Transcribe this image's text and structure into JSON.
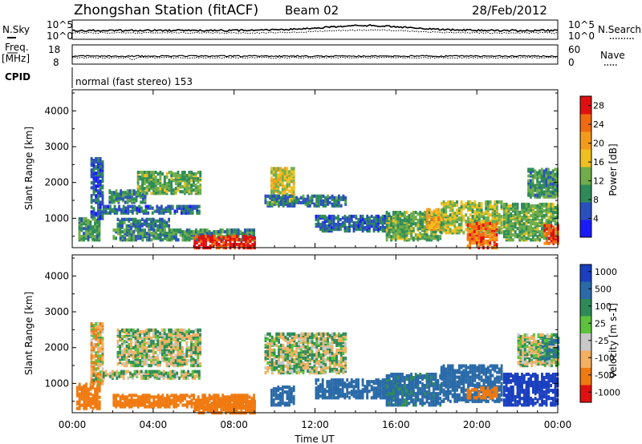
{
  "header": {
    "station": "Zhongshan Station (fitACF)",
    "beam": "Beam 02",
    "date": "28/Feb/2012"
  },
  "strips": {
    "noise": {
      "left_label": "N.Sky",
      "right_label": "N.Search",
      "left_top": "10^5",
      "left_bottom": "10^0",
      "right_top": "10^5",
      "right_bottom": "10^0"
    },
    "freq": {
      "left_label_1": "Freq.",
      "left_label_2": "[MHz]",
      "right_label": "Nave",
      "left_top": "18",
      "left_bottom": "8",
      "right_top": "60",
      "right_bottom": "0"
    },
    "cpid": {
      "label": "CPID",
      "value": "normal (fast stereo) 153"
    }
  },
  "axes": {
    "xlabel": "Time UT",
    "ylabel": "Slant Range [km]",
    "xticks": [
      "00:00",
      "04:00",
      "08:00",
      "12:00",
      "16:00",
      "20:00",
      "00:00"
    ],
    "yticks": [
      "1000",
      "2000",
      "3000",
      "4000"
    ]
  },
  "chart_data": [
    {
      "type": "heatmap",
      "panel": "power",
      "xlabel": "Time UT",
      "ylabel": "Slant Range [km]",
      "x_range_hours": [
        0,
        24
      ],
      "ylim": [
        180,
        4590
      ],
      "colorbar": {
        "label": "Power [dB]",
        "ticks": [
          "4",
          "8",
          "12",
          "16",
          "20",
          "24",
          "28"
        ],
        "tick_values": [
          4,
          8,
          12,
          16,
          20,
          24,
          28
        ],
        "vmin": 0,
        "vmax": 30,
        "colors": [
          "#1a1aff",
          "#2a4fbf",
          "#2e8b57",
          "#6fae4a",
          "#f0c020",
          "#f39a1c",
          "#f06a10",
          "#e01010"
        ]
      },
      "patches": [
        {
          "t0": 0.3,
          "t1": 1.4,
          "r0": 400,
          "r1": 1000,
          "level": 10
        },
        {
          "t0": 0.9,
          "t1": 1.5,
          "r0": 1000,
          "r1": 2700,
          "level": 6
        },
        {
          "t0": 1.5,
          "t1": 6.3,
          "r0": 1150,
          "r1": 1350,
          "level": 7
        },
        {
          "t0": 1.8,
          "t1": 3.6,
          "r0": 1450,
          "r1": 1800,
          "level": 9
        },
        {
          "t0": 3.2,
          "t1": 6.3,
          "r0": 1700,
          "r1": 2300,
          "level": 12
        },
        {
          "t0": 2.2,
          "t1": 4.8,
          "r0": 700,
          "r1": 1000,
          "level": 8
        },
        {
          "t0": 2.0,
          "t1": 9.0,
          "r0": 400,
          "r1": 700,
          "level": 10
        },
        {
          "t0": 6.0,
          "t1": 9.0,
          "r0": 180,
          "r1": 500,
          "level": 28
        },
        {
          "t0": 9.8,
          "t1": 11.0,
          "r0": 1400,
          "r1": 2400,
          "level": 16
        },
        {
          "t0": 9.5,
          "t1": 13.5,
          "r0": 1350,
          "r1": 1650,
          "level": 8
        },
        {
          "t0": 12.0,
          "t1": 16.0,
          "r0": 650,
          "r1": 1100,
          "level": 7
        },
        {
          "t0": 15.5,
          "t1": 18.2,
          "r0": 400,
          "r1": 1200,
          "level": 12
        },
        {
          "t0": 17.5,
          "t1": 18.3,
          "r0": 700,
          "r1": 1250,
          "level": 20
        },
        {
          "t0": 18.2,
          "t1": 21.2,
          "r0": 600,
          "r1": 1500,
          "level": 14
        },
        {
          "t0": 19.5,
          "t1": 21.0,
          "r0": 180,
          "r1": 900,
          "level": 24
        },
        {
          "t0": 21.3,
          "t1": 24.0,
          "r0": 400,
          "r1": 1400,
          "level": 12
        },
        {
          "t0": 22.5,
          "t1": 24.0,
          "r0": 1600,
          "r1": 2400,
          "level": 10
        },
        {
          "t0": 23.3,
          "t1": 24.0,
          "r0": 300,
          "r1": 800,
          "level": 26
        }
      ]
    },
    {
      "type": "heatmap",
      "panel": "velocity",
      "xlabel": "Time UT",
      "ylabel": "Slant Range [km]",
      "x_range_hours": [
        0,
        24
      ],
      "ylim": [
        180,
        4590
      ],
      "colorbar": {
        "label": "Velocity [m s-1]",
        "ticks": [
          "1000",
          "500",
          "100",
          "25",
          "-25",
          "-100",
          "-500",
          "-1000"
        ],
        "tick_values": [
          1000,
          500,
          100,
          25,
          -25,
          -100,
          -500,
          -1000
        ],
        "colors": [
          "#1a3fbf",
          "#2a6aa8",
          "#2e8b57",
          "#5cc23c",
          "#c8c8c8",
          "#f3b060",
          "#f07a10",
          "#e01010"
        ]
      },
      "patches": [
        {
          "t0": 0.2,
          "t1": 1.4,
          "r0": 300,
          "r1": 1000,
          "velocity": -300
        },
        {
          "t0": 0.9,
          "t1": 1.5,
          "r0": 1000,
          "r1": 2700,
          "velocity": -60
        },
        {
          "t0": 1.5,
          "t1": 6.3,
          "r0": 1150,
          "r1": 1350,
          "velocity": 0
        },
        {
          "t0": 2.2,
          "t1": 6.3,
          "r0": 1500,
          "r1": 2500,
          "velocity": 5
        },
        {
          "t0": 2.0,
          "t1": 9.0,
          "r0": 350,
          "r1": 700,
          "velocity": -400
        },
        {
          "t0": 6.0,
          "t1": 9.0,
          "r0": 180,
          "r1": 500,
          "velocity": -350
        },
        {
          "t0": 9.5,
          "t1": 13.5,
          "r0": 1300,
          "r1": 2400,
          "velocity": 0
        },
        {
          "t0": 9.8,
          "t1": 11.0,
          "r0": 400,
          "r1": 900,
          "velocity": 300
        },
        {
          "t0": 12.0,
          "t1": 16.0,
          "r0": 600,
          "r1": 1100,
          "velocity": 200
        },
        {
          "t0": 15.5,
          "t1": 18.2,
          "r0": 400,
          "r1": 1300,
          "velocity": 150
        },
        {
          "t0": 18.2,
          "t1": 21.2,
          "r0": 500,
          "r1": 1500,
          "velocity": 250
        },
        {
          "t0": 19.5,
          "t1": 21.0,
          "r0": 600,
          "r1": 900,
          "velocity": -300
        },
        {
          "t0": 21.3,
          "t1": 24.0,
          "r0": 400,
          "r1": 1300,
          "velocity": 700
        },
        {
          "t0": 22.0,
          "t1": 24.0,
          "r0": 1500,
          "r1": 2400,
          "velocity": 0
        },
        {
          "t0": 23.2,
          "t1": 24.0,
          "r0": 1700,
          "r1": 2200,
          "velocity": 80
        }
      ]
    }
  ]
}
